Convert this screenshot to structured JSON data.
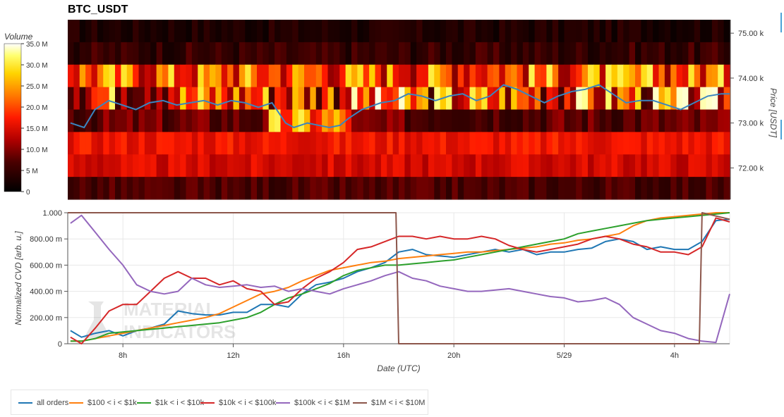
{
  "page_title": "BTC_USDT",
  "heatmap": {
    "colorbar_label": "Volume",
    "colorbar_ticks": [
      "0",
      "5 M",
      "10.0 M",
      "15.0 M",
      "20.0 M",
      "25.0 M",
      "30.0 M",
      "35.0 M"
    ],
    "colorbar_tick_values": [
      0,
      5,
      10,
      15,
      20,
      25,
      30,
      35
    ],
    "right_axis_label": "Price [USDT]",
    "right_ticks": [
      "72.00 k",
      "73.00 k",
      "74.00 k",
      "75.00 k"
    ],
    "right_tick_values": [
      72000,
      73000,
      74000,
      75000
    ]
  },
  "cvd": {
    "ylabel": "Normalized CVD [arb. u.]",
    "xlabel": "Date (UTC)",
    "yticks": [
      "0",
      "200.00 m",
      "400.00 m",
      "600.00 m",
      "800.00 m",
      "1.000"
    ],
    "ytick_values": [
      0,
      0.2,
      0.4,
      0.6,
      0.8,
      1.0
    ],
    "xticks": [
      "8h",
      "12h",
      "16h",
      "20h",
      "5/29",
      "4h"
    ]
  },
  "watermark": {
    "line1": "MATERIAL",
    "line2": "INDICATORS"
  },
  "legend": [
    {
      "label": "all orders",
      "color": "#1f77b4"
    },
    {
      "label": "$100 < i < $1k",
      "color": "#ff7f0e"
    },
    {
      "label": "$1k < i < $10k",
      "color": "#2ca02c"
    },
    {
      "label": "$10k < i < $100k",
      "color": "#d62728"
    },
    {
      "label": "$100k < i < $1M",
      "color": "#9467bd"
    },
    {
      "label": "$1M < i < $10M",
      "color": "#8c564b"
    }
  ],
  "chart_data": [
    {
      "type": "heatmap",
      "title": "BTC_USDT",
      "colorbar_label": "Volume",
      "zlim": [
        0,
        35
      ],
      "z_unit": "M",
      "ylabel": "Price [USDT]",
      "ylim": [
        71300,
        75300
      ],
      "price_bins_top": [
        75300,
        74800,
        74300,
        73800,
        73300,
        72800,
        72300,
        71800
      ],
      "bin_volume_profile": [
        {
          "bin": "75.3k-74.8k",
          "typical_volume_M": 2
        },
        {
          "bin": "74.8k-74.3k",
          "typical_volume_M": 4
        },
        {
          "bin": "74.3k-73.8k",
          "typical_volume_M": 14
        },
        {
          "bin": "73.8k-73.3k",
          "typical_volume_M": 22
        },
        {
          "bin": "73.3k-72.8k",
          "typical_volume_M": 8
        },
        {
          "bin": "72.8k-72.3k",
          "typical_volume_M": 16
        },
        {
          "bin": "72.3k-71.8k",
          "typical_volume_M": 14
        },
        {
          "bin": "71.8k-71.3k",
          "typical_volume_M": 6
        }
      ],
      "price_series": {
        "x_hours": [
          6.1,
          6.6,
          7.0,
          7.5,
          8.0,
          8.5,
          9.0,
          9.5,
          10.0,
          10.5,
          11.0,
          11.5,
          12.0,
          12.5,
          13.0,
          13.5,
          14.0,
          14.3,
          14.8,
          15.2,
          15.6,
          16.0,
          16.3,
          16.8,
          17.5,
          18.0,
          18.5,
          19.0,
          19.5,
          20.0,
          20.5,
          21.0,
          21.5,
          22.0,
          22.5,
          23.0,
          23.5,
          24.0,
          24.5,
          25.0,
          25.5,
          26.0,
          26.5,
          27.0,
          27.5,
          28.0,
          28.5,
          29.0,
          29.5,
          30.0,
          30.3
        ],
        "y_price": [
          73000,
          72900,
          73300,
          73500,
          73400,
          73300,
          73450,
          73500,
          73400,
          73450,
          73500,
          73400,
          73500,
          73450,
          73350,
          73450,
          73000,
          72900,
          73000,
          72950,
          72900,
          72950,
          73100,
          73300,
          73450,
          73500,
          73650,
          73600,
          73500,
          73600,
          73650,
          73500,
          73600,
          73850,
          73750,
          73600,
          73450,
          73600,
          73700,
          73750,
          73850,
          73650,
          73450,
          73500,
          73500,
          73400,
          73300,
          73450,
          73600,
          73650,
          73650
        ]
      }
    },
    {
      "type": "line",
      "xlabel": "Date (UTC)",
      "ylabel": "Normalized CVD [arb. u.]",
      "ylim": [
        0,
        1
      ],
      "xlim_hours": [
        6,
        30
      ],
      "xtick_hours": [
        8,
        12,
        16,
        20,
        24,
        28
      ],
      "xtick_labels": [
        "8h",
        "12h",
        "16h",
        "20h",
        "5/29",
        "4h"
      ],
      "series": [
        {
          "name": "all orders",
          "color": "#1f77b4",
          "x": [
            6.1,
            6.5,
            7,
            7.5,
            8,
            8.5,
            9,
            9.5,
            10,
            10.5,
            11,
            11.5,
            12,
            12.5,
            13,
            13.5,
            14,
            14.5,
            15,
            15.5,
            16,
            16.5,
            17,
            17.5,
            18,
            18.5,
            19,
            19.5,
            20,
            20.5,
            21,
            21.5,
            22,
            22.5,
            23,
            23.5,
            24,
            24.5,
            25,
            25.5,
            26,
            26.5,
            27,
            27.5,
            28,
            28.5,
            29,
            29.5,
            30
          ],
          "y": [
            0.1,
            0.05,
            0.08,
            0.1,
            0.06,
            0.1,
            0.12,
            0.15,
            0.25,
            0.23,
            0.22,
            0.22,
            0.24,
            0.24,
            0.3,
            0.3,
            0.28,
            0.38,
            0.45,
            0.47,
            0.5,
            0.55,
            0.58,
            0.62,
            0.7,
            0.72,
            0.68,
            0.67,
            0.66,
            0.68,
            0.7,
            0.72,
            0.7,
            0.72,
            0.68,
            0.7,
            0.7,
            0.72,
            0.73,
            0.78,
            0.8,
            0.78,
            0.72,
            0.74,
            0.72,
            0.72,
            0.78,
            0.94,
            0.95
          ]
        },
        {
          "name": "$100 < i < $1k",
          "color": "#ff7f0e",
          "x": [
            6.1,
            6.5,
            7,
            7.5,
            8,
            8.5,
            9,
            9.5,
            10,
            10.5,
            11,
            11.5,
            12,
            12.5,
            13,
            13.5,
            14,
            14.5,
            15,
            15.5,
            16,
            16.5,
            17,
            17.5,
            18,
            18.5,
            19,
            19.5,
            20,
            20.5,
            21,
            21.5,
            22,
            22.5,
            23,
            23.5,
            24,
            24.5,
            25,
            25.5,
            26,
            26.5,
            27,
            27.5,
            28,
            28.5,
            29,
            29.5,
            30
          ],
          "y": [
            0.02,
            0.02,
            0.04,
            0.06,
            0.08,
            0.1,
            0.12,
            0.14,
            0.16,
            0.18,
            0.2,
            0.23,
            0.28,
            0.33,
            0.38,
            0.4,
            0.43,
            0.48,
            0.52,
            0.56,
            0.58,
            0.6,
            0.62,
            0.63,
            0.65,
            0.66,
            0.67,
            0.68,
            0.69,
            0.7,
            0.7,
            0.71,
            0.72,
            0.73,
            0.74,
            0.76,
            0.77,
            0.79,
            0.8,
            0.82,
            0.84,
            0.9,
            0.94,
            0.96,
            0.97,
            0.98,
            0.99,
            1.0,
            1.0
          ]
        },
        {
          "name": "$1k < i < $10k",
          "color": "#2ca02c",
          "x": [
            6.1,
            6.5,
            7,
            7.5,
            8,
            8.5,
            9,
            9.5,
            10,
            10.5,
            11,
            11.5,
            12,
            12.5,
            13,
            13.5,
            14,
            14.5,
            15,
            15.5,
            16,
            16.5,
            17,
            17.5,
            18,
            18.5,
            19,
            19.5,
            20,
            20.5,
            21,
            21.5,
            22,
            22.5,
            23,
            23.5,
            24,
            24.5,
            25,
            25.5,
            26,
            26.5,
            27,
            27.5,
            28,
            28.5,
            29,
            29.5,
            30
          ],
          "y": [
            0.02,
            0.02,
            0.04,
            0.08,
            0.09,
            0.1,
            0.11,
            0.12,
            0.13,
            0.14,
            0.15,
            0.16,
            0.18,
            0.2,
            0.24,
            0.3,
            0.35,
            0.38,
            0.42,
            0.46,
            0.52,
            0.56,
            0.58,
            0.6,
            0.6,
            0.61,
            0.62,
            0.63,
            0.64,
            0.66,
            0.68,
            0.7,
            0.72,
            0.74,
            0.76,
            0.78,
            0.8,
            0.84,
            0.86,
            0.88,
            0.9,
            0.92,
            0.94,
            0.95,
            0.96,
            0.97,
            0.98,
            0.99,
            1.0
          ]
        },
        {
          "name": "$10k < i < $100k",
          "color": "#d62728",
          "x": [
            6.1,
            6.5,
            7,
            7.5,
            8,
            8.5,
            9,
            9.5,
            10,
            10.5,
            11,
            11.5,
            12,
            12.5,
            13,
            13.5,
            14,
            14.5,
            15,
            15.5,
            16,
            16.5,
            17,
            17.5,
            18,
            18.5,
            19,
            19.5,
            20,
            20.5,
            21,
            21.5,
            22,
            22.5,
            23,
            23.5,
            24,
            24.5,
            25,
            25.5,
            26,
            26.5,
            27,
            27.5,
            28,
            28.5,
            29,
            29.5,
            30
          ],
          "y": [
            0.05,
            0.0,
            0.12,
            0.25,
            0.3,
            0.3,
            0.4,
            0.5,
            0.55,
            0.5,
            0.5,
            0.45,
            0.48,
            0.42,
            0.4,
            0.3,
            0.32,
            0.42,
            0.5,
            0.55,
            0.62,
            0.72,
            0.74,
            0.78,
            0.82,
            0.82,
            0.8,
            0.82,
            0.8,
            0.8,
            0.82,
            0.8,
            0.75,
            0.72,
            0.7,
            0.72,
            0.74,
            0.76,
            0.8,
            0.82,
            0.8,
            0.76,
            0.74,
            0.7,
            0.7,
            0.68,
            0.74,
            0.96,
            0.93
          ]
        },
        {
          "name": "$100k < i < $1M",
          "color": "#9467bd",
          "x": [
            6.1,
            6.5,
            7,
            7.5,
            8,
            8.5,
            9,
            9.5,
            10,
            10.5,
            11,
            11.5,
            12,
            12.5,
            13,
            13.5,
            14,
            14.5,
            15,
            15.5,
            16,
            16.5,
            17,
            17.5,
            18,
            18.5,
            19,
            19.5,
            20,
            20.5,
            21,
            21.5,
            22,
            22.5,
            23,
            23.5,
            24,
            24.5,
            25,
            25.5,
            26,
            26.5,
            27,
            27.5,
            28,
            28.5,
            29,
            29.5,
            30
          ],
          "y": [
            0.92,
            0.98,
            0.85,
            0.72,
            0.6,
            0.45,
            0.4,
            0.38,
            0.4,
            0.5,
            0.45,
            0.43,
            0.44,
            0.45,
            0.43,
            0.44,
            0.4,
            0.42,
            0.4,
            0.38,
            0.42,
            0.45,
            0.48,
            0.52,
            0.55,
            0.5,
            0.48,
            0.44,
            0.42,
            0.4,
            0.4,
            0.41,
            0.42,
            0.4,
            0.38,
            0.36,
            0.35,
            0.32,
            0.33,
            0.35,
            0.3,
            0.2,
            0.15,
            0.1,
            0.08,
            0.04,
            0.02,
            0.01,
            0.38
          ]
        },
        {
          "name": "$1M < i < $10M",
          "color": "#8c564b",
          "x": [
            6.0,
            17.9,
            18.0,
            28.9,
            29.0,
            30.0
          ],
          "y": [
            1.0,
            1.0,
            0.0,
            0.0,
            1.0,
            0.95
          ]
        }
      ]
    }
  ]
}
